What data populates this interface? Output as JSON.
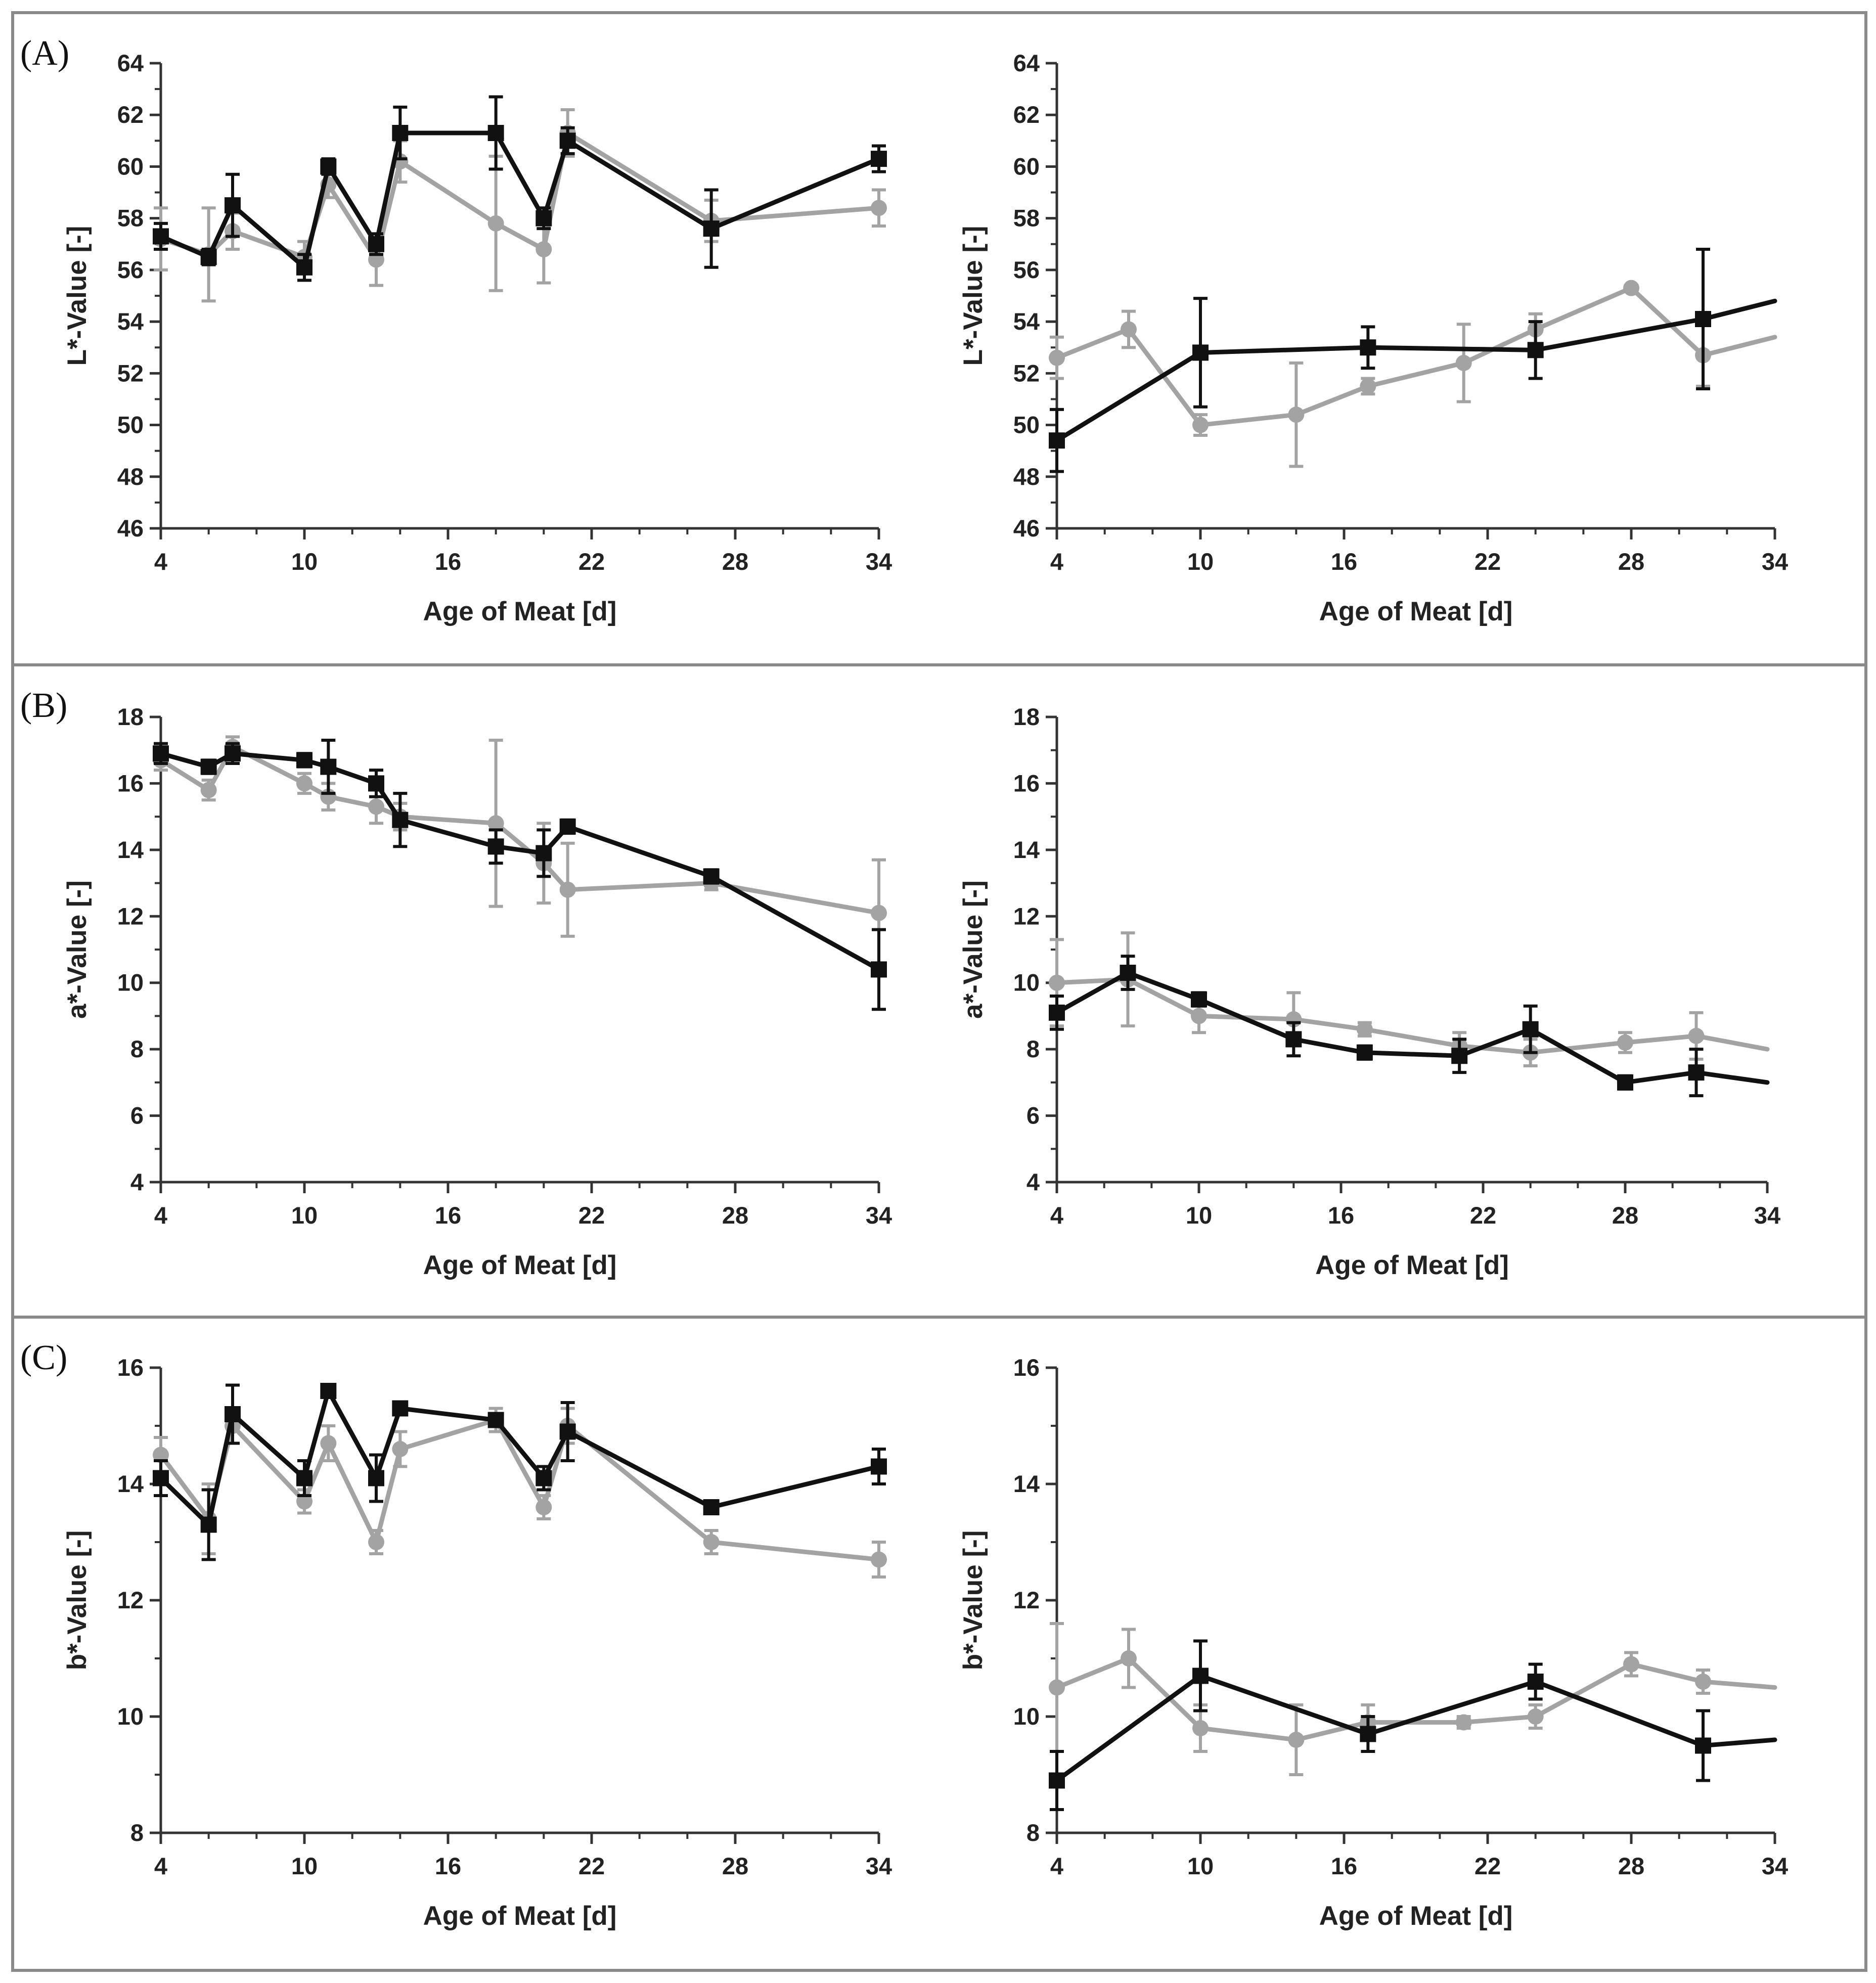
{
  "figure": {
    "panel_labels": [
      "(A)",
      "(B)",
      "(C)"
    ],
    "series_colors": {
      "black": "#111111",
      "gray": "#a3a3a3"
    }
  },
  "chart_data": [
    {
      "id": "A-left",
      "type": "line",
      "panel": "(A)",
      "xlabel": "Age of Meat [d]",
      "ylabel": "L*-Value [-]",
      "xlim": [
        4,
        34
      ],
      "ylim": [
        46,
        64
      ],
      "xticks": [
        4,
        10,
        16,
        22,
        28,
        34
      ],
      "yticks": [
        46,
        48,
        50,
        52,
        54,
        56,
        58,
        60,
        62,
        64
      ],
      "series": [
        {
          "name": "black",
          "marker": "square",
          "x": [
            4,
            6,
            7,
            10,
            11,
            13,
            14,
            18,
            20,
            21,
            27,
            34
          ],
          "y": [
            57.3,
            56.5,
            58.5,
            56.1,
            60.0,
            57.0,
            61.3,
            61.3,
            58.0,
            61.0,
            57.6,
            60.3
          ],
          "err": [
            0.5,
            0.3,
            1.2,
            0.5,
            0.3,
            0.4,
            1.0,
            1.4,
            0.4,
            0.5,
            1.5,
            0.5
          ]
        },
        {
          "name": "gray",
          "marker": "circle",
          "x": [
            4,
            6,
            7,
            10,
            11,
            13,
            14,
            18,
            20,
            21,
            27,
            34
          ],
          "y": [
            57.2,
            56.6,
            57.5,
            56.5,
            59.3,
            56.4,
            60.2,
            57.8,
            56.8,
            61.3,
            57.9,
            58.4
          ],
          "err": [
            1.2,
            1.8,
            0.7,
            0.6,
            0.5,
            1.0,
            0.8,
            2.6,
            1.3,
            0.9,
            0.8,
            0.7
          ]
        }
      ]
    },
    {
      "id": "A-right",
      "type": "line",
      "panel": "(A)",
      "xlabel": "Age of Meat [d]",
      "ylabel": "L*-Value [-]",
      "xlim": [
        4,
        34
      ],
      "ylim": [
        46,
        64
      ],
      "xticks": [
        4,
        10,
        16,
        22,
        28,
        34
      ],
      "yticks": [
        46,
        48,
        50,
        52,
        54,
        56,
        58,
        60,
        62,
        64
      ],
      "series": [
        {
          "name": "black",
          "marker": "square",
          "x": [
            4,
            10,
            17,
            24,
            31,
            34
          ],
          "y": [
            49.4,
            52.8,
            53.0,
            52.9,
            54.1,
            54.8
          ],
          "err": [
            1.2,
            2.1,
            0.8,
            1.1,
            2.7,
            null
          ]
        },
        {
          "name": "gray",
          "marker": "circle",
          "x": [
            4,
            7,
            10,
            14,
            17,
            21,
            24,
            28,
            31,
            34
          ],
          "y": [
            52.6,
            53.7,
            50.0,
            50.4,
            51.5,
            52.4,
            53.7,
            55.3,
            52.7,
            53.4
          ],
          "err": [
            0.8,
            0.7,
            0.4,
            2.0,
            0.3,
            1.5,
            0.6,
            null,
            1.2,
            null
          ]
        }
      ]
    },
    {
      "id": "B-left",
      "type": "line",
      "panel": "(B)",
      "xlabel": "Age of Meat [d]",
      "ylabel": "a*-Value [-]",
      "xlim": [
        4,
        34
      ],
      "ylim": [
        4,
        18
      ],
      "xticks": [
        4,
        10,
        16,
        22,
        28,
        34
      ],
      "yticks": [
        4,
        6,
        8,
        10,
        12,
        14,
        16,
        18
      ],
      "series": [
        {
          "name": "black",
          "marker": "square",
          "x": [
            4,
            6,
            7,
            10,
            11,
            13,
            14,
            18,
            20,
            21,
            27,
            34
          ],
          "y": [
            16.9,
            16.5,
            16.9,
            16.7,
            16.5,
            16.0,
            14.9,
            14.1,
            13.9,
            14.7,
            13.2,
            10.4
          ],
          "err": [
            0.3,
            0.2,
            0.3,
            0.2,
            0.8,
            0.4,
            0.8,
            0.5,
            0.7,
            0.2,
            0.2,
            1.2
          ]
        },
        {
          "name": "gray",
          "marker": "circle",
          "x": [
            4,
            6,
            7,
            10,
            11,
            13,
            14,
            18,
            20,
            21,
            27,
            34
          ],
          "y": [
            16.7,
            15.8,
            17.1,
            16.0,
            15.6,
            15.3,
            15.0,
            14.8,
            13.6,
            12.8,
            13.0,
            12.1
          ],
          "err": [
            0.3,
            0.3,
            0.3,
            0.3,
            0.4,
            0.5,
            0.4,
            2.5,
            1.2,
            1.4,
            0.2,
            1.6
          ]
        }
      ]
    },
    {
      "id": "B-right",
      "type": "line",
      "panel": "(B)",
      "xlabel": "Age of Meat [d]",
      "ylabel": "a*-Value [-]",
      "xlim": [
        4,
        34
      ],
      "ylim": [
        4,
        18
      ],
      "xticks": [
        4,
        10,
        16,
        22,
        28,
        34
      ],
      "yticks": [
        4,
        6,
        8,
        10,
        12,
        14,
        16,
        18
      ],
      "series": [
        {
          "name": "black",
          "marker": "square",
          "x": [
            4,
            7,
            10,
            14,
            17,
            21,
            24,
            28,
            31,
            34
          ],
          "y": [
            9.1,
            10.3,
            9.5,
            8.3,
            7.9,
            7.8,
            8.6,
            7.0,
            7.3,
            7.0
          ],
          "err": [
            0.5,
            0.5,
            0.2,
            0.5,
            0.2,
            0.5,
            0.7,
            0.2,
            0.7,
            null
          ]
        },
        {
          "name": "gray",
          "marker": "circle",
          "x": [
            4,
            7,
            10,
            14,
            17,
            21,
            24,
            28,
            31,
            34
          ],
          "y": [
            10.0,
            10.1,
            9.0,
            8.9,
            8.6,
            8.1,
            7.9,
            8.2,
            8.4,
            8.0
          ],
          "err": [
            1.3,
            1.4,
            0.5,
            0.8,
            0.2,
            0.4,
            0.4,
            0.3,
            0.7,
            null
          ]
        }
      ]
    },
    {
      "id": "C-left",
      "type": "line",
      "panel": "(C)",
      "xlabel": "Age of Meat [d]",
      "ylabel": "b*-Value [-]",
      "xlim": [
        4,
        34
      ],
      "ylim": [
        8,
        16
      ],
      "xticks": [
        4,
        10,
        16,
        22,
        28,
        34
      ],
      "yticks": [
        8,
        10,
        12,
        14,
        16
      ],
      "series": [
        {
          "name": "black",
          "marker": "square",
          "x": [
            4,
            6,
            7,
            10,
            11,
            13,
            14,
            18,
            20,
            21,
            27,
            34
          ],
          "y": [
            14.1,
            13.3,
            15.2,
            14.1,
            15.6,
            14.1,
            15.3,
            15.1,
            14.1,
            14.9,
            13.6,
            14.3
          ],
          "err": [
            0.3,
            0.6,
            0.5,
            0.3,
            0.1,
            0.4,
            0.1,
            0.1,
            0.2,
            0.5,
            0.1,
            0.3
          ]
        },
        {
          "name": "gray",
          "marker": "circle",
          "x": [
            4,
            6,
            7,
            10,
            11,
            13,
            14,
            18,
            20,
            21,
            27,
            34
          ],
          "y": [
            14.5,
            13.4,
            15.0,
            13.7,
            14.7,
            13.0,
            14.6,
            15.1,
            13.6,
            15.0,
            13.0,
            12.7
          ],
          "err": [
            0.3,
            0.6,
            0.3,
            0.2,
            0.3,
            0.2,
            0.3,
            0.2,
            0.2,
            0.3,
            0.2,
            0.3
          ]
        }
      ]
    },
    {
      "id": "C-right",
      "type": "line",
      "panel": "(C)",
      "xlabel": "Age of Meat [d]",
      "ylabel": "b*-Value [-]",
      "xlim": [
        4,
        34
      ],
      "ylim": [
        8,
        16
      ],
      "xticks": [
        4,
        10,
        16,
        22,
        28,
        34
      ],
      "yticks": [
        8,
        10,
        12,
        14,
        16
      ],
      "series": [
        {
          "name": "black",
          "marker": "square",
          "x": [
            4,
            10,
            17,
            24,
            31,
            34
          ],
          "y": [
            8.9,
            10.7,
            9.7,
            10.6,
            9.5,
            9.6
          ],
          "err": [
            0.5,
            0.6,
            0.3,
            0.3,
            0.6,
            null
          ]
        },
        {
          "name": "gray",
          "marker": "circle",
          "x": [
            4,
            7,
            10,
            14,
            17,
            21,
            24,
            28,
            31,
            34
          ],
          "y": [
            10.5,
            11.0,
            9.8,
            9.6,
            9.9,
            9.9,
            10.0,
            10.9,
            10.6,
            10.5
          ],
          "err": [
            1.1,
            0.5,
            0.4,
            0.6,
            0.3,
            0.1,
            0.2,
            0.2,
            0.2,
            null
          ]
        }
      ]
    }
  ]
}
